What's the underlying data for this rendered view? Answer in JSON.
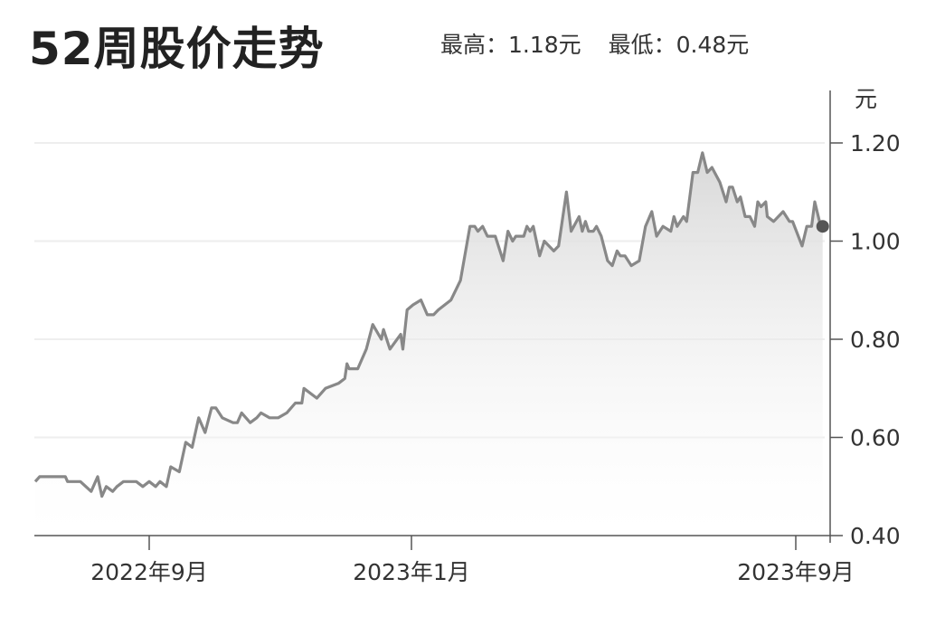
{
  "chart_data": {
    "type": "area",
    "title": "52周股价走势",
    "stats": {
      "high_label": "最高：1.18元",
      "low_label": "最低：0.48元"
    },
    "ylabel": "元",
    "ylim": [
      0.4,
      1.2
    ],
    "yticks": [
      "1.20",
      "1.00",
      "0.80",
      "0.60",
      "0.40"
    ],
    "ytick_values": [
      1.2,
      1.0,
      0.8,
      0.6,
      0.4
    ],
    "xticks": [
      {
        "date": "2022-09-01",
        "label": "2022年9月"
      },
      {
        "date": "2023-01-01",
        "label": "2023年1月"
      },
      {
        "date": "2023-09-01",
        "label": "2023年9月"
      }
    ],
    "grid": true,
    "y_axis_side": "right",
    "colors": {
      "line": "#888888",
      "fill_top": "#d8d8d8",
      "fill_bottom": "#ffffff",
      "last_point": "#555555",
      "grid": "#eeeeee",
      "axis": "#555555"
    },
    "series": [
      {
        "x": [
          "2022-07-10",
          "2022-07-12",
          "2022-07-24",
          "2022-07-25",
          "2022-07-31",
          "2022-08-05",
          "2022-08-08",
          "2022-08-10",
          "2022-08-12",
          "2022-08-15",
          "2022-08-17",
          "2022-08-20",
          "2022-08-26",
          "2022-08-29",
          "2022-09-01",
          "2022-09-04",
          "2022-09-06",
          "2022-09-09",
          "2022-09-11",
          "2022-09-15",
          "2022-09-18",
          "2022-09-21",
          "2022-09-24",
          "2022-09-27",
          "2022-09-30",
          "2022-10-02",
          "2022-10-05",
          "2022-10-10",
          "2022-10-12",
          "2022-10-14",
          "2022-10-18",
          "2022-10-21",
          "2022-10-23",
          "2022-10-27",
          "2022-10-31",
          "2022-11-04",
          "2022-11-08",
          "2022-11-11",
          "2022-11-12",
          "2022-11-18",
          "2022-11-22",
          "2022-11-28",
          "2022-12-01",
          "2022-12-02",
          "2022-12-03",
          "2022-12-07",
          "2022-12-11",
          "2022-12-14",
          "2022-12-18",
          "2022-12-19",
          "2022-12-22",
          "2022-12-27",
          "2022-12-28",
          "2022-12-30",
          "2023-01-02",
          "2023-01-07",
          "2023-01-11",
          "2023-01-15",
          "2023-01-18",
          "2023-01-26",
          "2023-02-01",
          "2023-02-07",
          "2023-02-10",
          "2023-02-12",
          "2023-02-15",
          "2023-02-18",
          "2023-02-23",
          "2023-02-28",
          "2023-03-03",
          "2023-03-06",
          "2023-03-08",
          "2023-03-13",
          "2023-03-15",
          "2023-03-17",
          "2023-03-19",
          "2023-03-23",
          "2023-03-26",
          "2023-04-01",
          "2023-04-04",
          "2023-04-09",
          "2023-04-12",
          "2023-04-17",
          "2023-04-19",
          "2023-04-21",
          "2023-04-23",
          "2023-04-26",
          "2023-04-28",
          "2023-05-01",
          "2023-05-05",
          "2023-05-08",
          "2023-05-11",
          "2023-05-13",
          "2023-05-16",
          "2023-05-20",
          "2023-05-25",
          "2023-05-29",
          "2023-06-02",
          "2023-06-05",
          "2023-06-09",
          "2023-06-14",
          "2023-06-16",
          "2023-06-18",
          "2023-06-22",
          "2023-06-24",
          "2023-06-28",
          "2023-07-01",
          "2023-07-04",
          "2023-07-07",
          "2023-07-10",
          "2023-07-15",
          "2023-07-19",
          "2023-07-21",
          "2023-07-23",
          "2023-07-26",
          "2023-07-28",
          "2023-07-31",
          "2023-08-03",
          "2023-08-06",
          "2023-08-08",
          "2023-08-10",
          "2023-08-13",
          "2023-08-14",
          "2023-08-18",
          "2023-08-24",
          "2023-08-28",
          "2023-08-30",
          "2023-09-05",
          "2023-09-08",
          "2023-09-11",
          "2023-09-13",
          "2023-09-16",
          "2023-09-18"
        ],
        "y": [
          0.51,
          0.52,
          0.52,
          0.51,
          0.51,
          0.49,
          0.52,
          0.48,
          0.5,
          0.49,
          0.5,
          0.51,
          0.51,
          0.5,
          0.51,
          0.5,
          0.51,
          0.5,
          0.54,
          0.53,
          0.59,
          0.58,
          0.64,
          0.61,
          0.66,
          0.66,
          0.64,
          0.63,
          0.63,
          0.65,
          0.63,
          0.64,
          0.65,
          0.64,
          0.64,
          0.65,
          0.67,
          0.67,
          0.7,
          0.68,
          0.7,
          0.71,
          0.72,
          0.75,
          0.74,
          0.74,
          0.78,
          0.83,
          0.8,
          0.82,
          0.78,
          0.81,
          0.78,
          0.86,
          0.87,
          0.88,
          0.85,
          0.85,
          0.86,
          0.88,
          0.92,
          1.03,
          1.03,
          1.02,
          1.03,
          1.01,
          1.01,
          0.96,
          1.02,
          1.0,
          1.01,
          1.01,
          1.03,
          1.02,
          1.03,
          0.97,
          1.0,
          0.98,
          0.99,
          1.1,
          1.02,
          1.05,
          1.02,
          1.04,
          1.02,
          1.02,
          1.03,
          1.01,
          0.96,
          0.95,
          0.98,
          0.97,
          0.97,
          0.95,
          0.96,
          1.03,
          1.06,
          1.01,
          1.03,
          1.02,
          1.05,
          1.03,
          1.05,
          1.04,
          1.14,
          1.14,
          1.18,
          1.14,
          1.15,
          1.12,
          1.08,
          1.11,
          1.11,
          1.08,
          1.09,
          1.05,
          1.05,
          1.03,
          1.08,
          1.07,
          1.08,
          1.05,
          1.04,
          1.06,
          1.04,
          1.04,
          0.99,
          1.03,
          1.03,
          1.08,
          1.04,
          1.03
        ]
      }
    ]
  }
}
